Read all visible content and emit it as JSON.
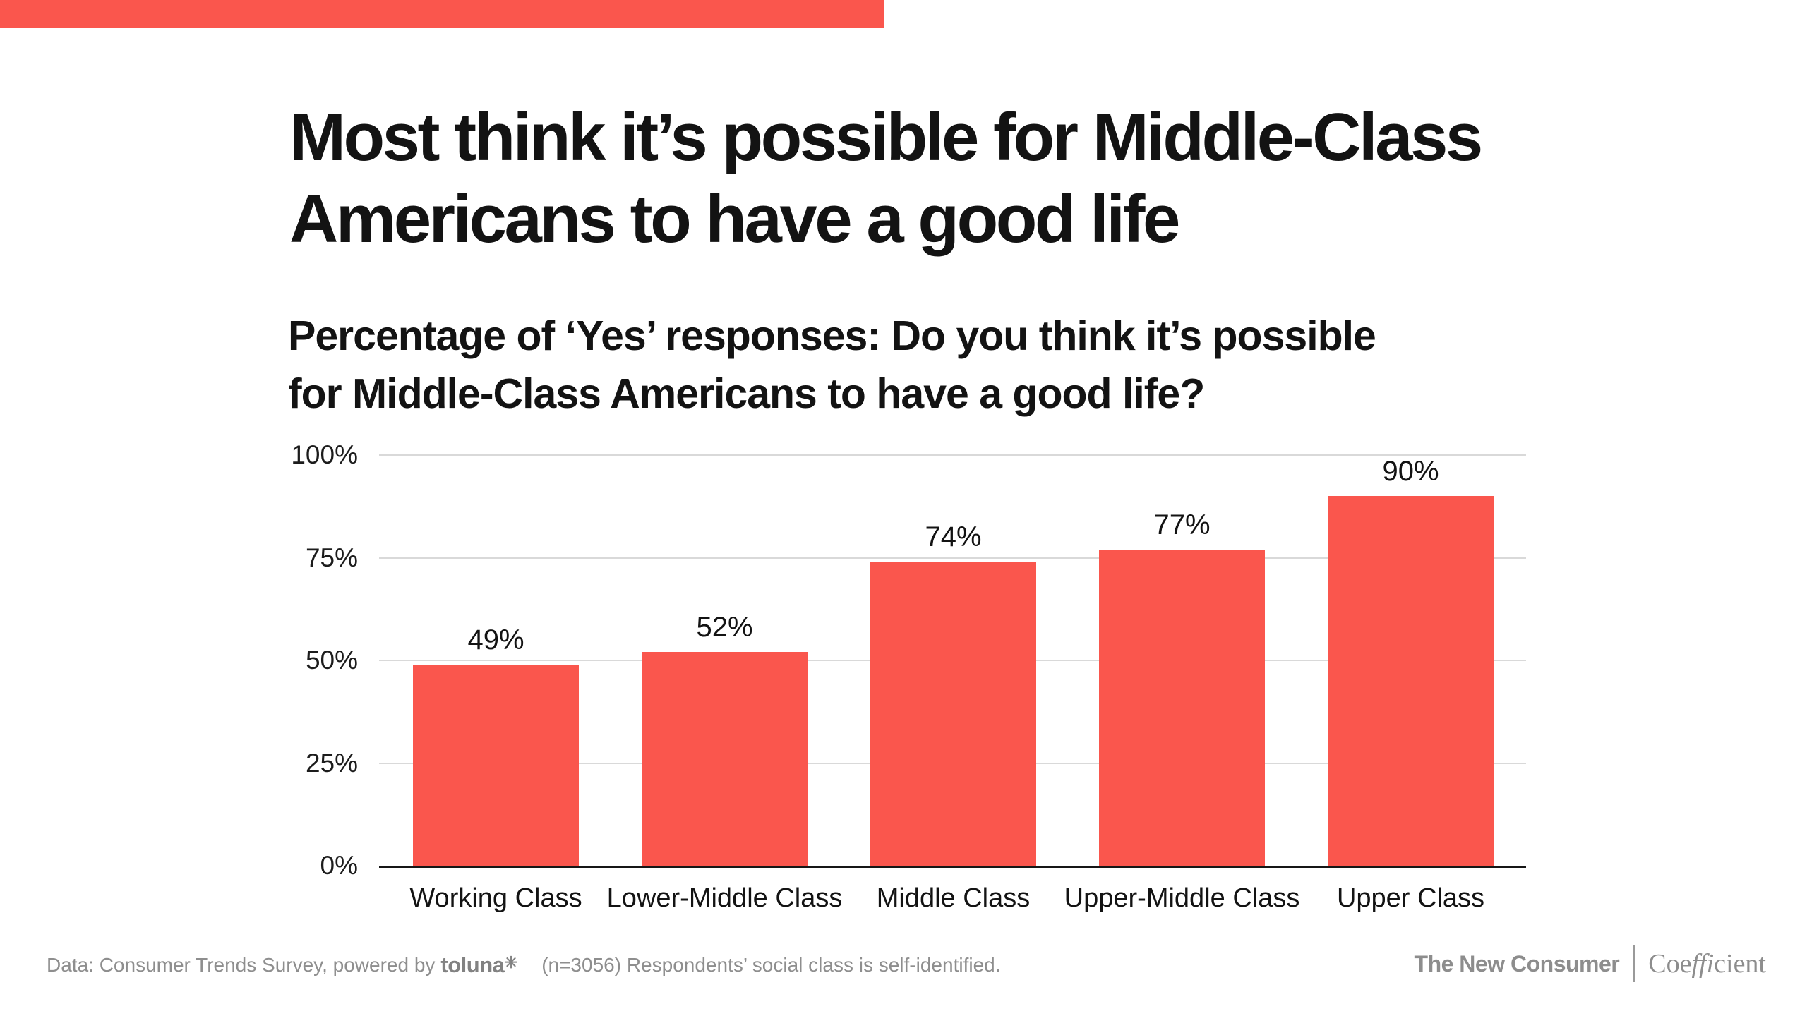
{
  "accent_color": "#FA564D",
  "header": {
    "title_line1": "Most think it’s possible for Middle-Class",
    "title_line2": "Americans to have a good life",
    "subtitle_line1": "Percentage of ‘Yes’ responses: Do you think it’s possible",
    "subtitle_line2": "for Middle-Class Americans to have a good life?"
  },
  "chart_data": {
    "type": "bar",
    "title": "Most think it’s possible for Middle-Class Americans to have a good life",
    "subtitle": "Percentage of ‘Yes’ responses: Do you think it’s possible for Middle-Class Americans to have a good life?",
    "categories": [
      "Working Class",
      "Lower-Middle Class",
      "Middle Class",
      "Upper-Middle Class",
      "Upper Class"
    ],
    "values": [
      49,
      52,
      74,
      77,
      90
    ],
    "value_labels": [
      "49%",
      "52%",
      "74%",
      "77%",
      "90%"
    ],
    "y_ticks": [
      {
        "label": "100%",
        "value": 100
      },
      {
        "label": "75%",
        "value": 75
      },
      {
        "label": "50%",
        "value": 50
      },
      {
        "label": "25%",
        "value": 25
      },
      {
        "label": "0%",
        "value": 0
      }
    ],
    "gridline_values": [
      100,
      75,
      50,
      25
    ],
    "ylim": [
      0,
      100
    ],
    "bar_color": "#FA564D",
    "grid": true,
    "legend": false,
    "xlabel": "",
    "ylabel": ""
  },
  "footer": {
    "source_prefix": "Data: Consumer Trends Survey, powered by",
    "toluna_logo_text": "toluna",
    "toluna_star": "✳",
    "source_suffix": "(n=3056) Respondents’ social class is self-identified.",
    "brand_left": "The New Consumer",
    "coefficient_pre": "Coe",
    "coefficient_ligature": "ffi",
    "coefficient_post": "cient"
  }
}
